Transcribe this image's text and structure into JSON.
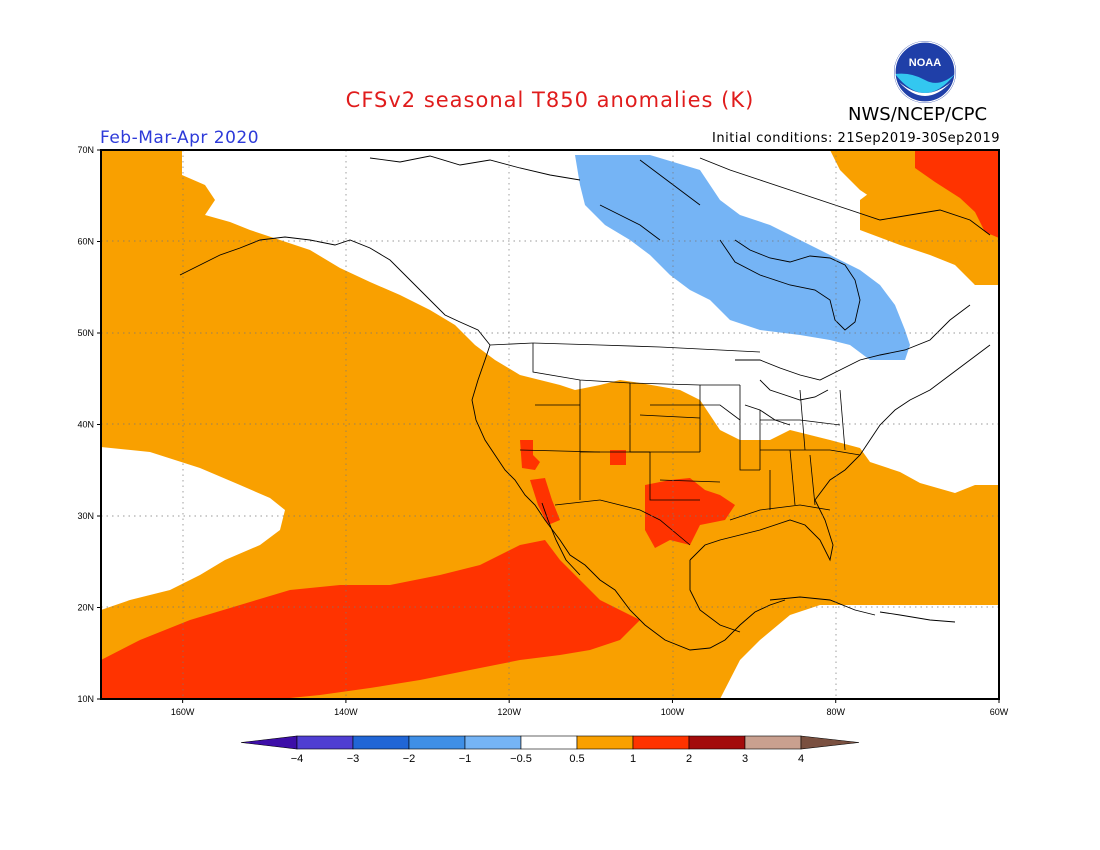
{
  "title": "CFSv2 seasonal T850 anomalies (K)",
  "period": "Feb-Mar-Apr 2020",
  "initial_conditions": "Initial conditions: 21Sep2019-30Sep2019",
  "agency": "NWS/NCEP/CPC",
  "logo_text": "NOAA",
  "map": {
    "lon_range": [
      -170,
      -60
    ],
    "lat_range": [
      10,
      70
    ],
    "lat_labels": [
      "10N",
      "20N",
      "30N",
      "40N",
      "50N",
      "60N",
      "70N"
    ],
    "lon_labels": [
      "160W",
      "140W",
      "120W",
      "100W",
      "80W",
      "60W"
    ],
    "colors": {
      "white": "#ffffff",
      "light_blue": "#75b4f5",
      "orange": "#f9a000",
      "red_orange": "#ff3300",
      "deep_red": "#e82a00"
    }
  },
  "legend": {
    "tick_labels": [
      "-4",
      "-3",
      "-2",
      "-1",
      "-0.5",
      "0.5",
      "1",
      "2",
      "3",
      "4"
    ],
    "colors": [
      "#3d0ea8",
      "#4f3ed2",
      "#2166d6",
      "#3f8fe6",
      "#75b4f5",
      "#ffffff",
      "#f9a000",
      "#ff3300",
      "#a30b0b",
      "#c9a08f",
      "#7a5040"
    ]
  }
}
